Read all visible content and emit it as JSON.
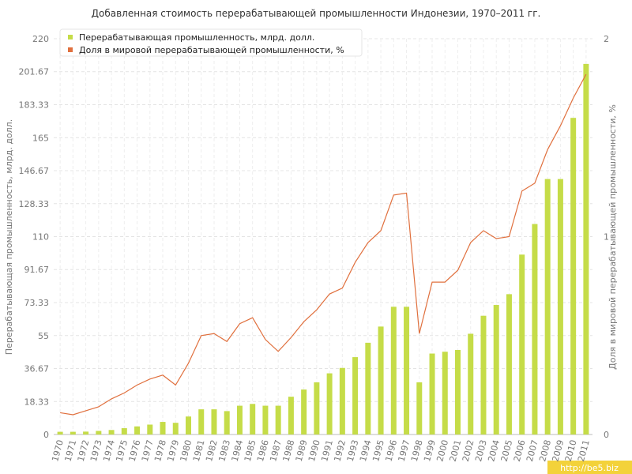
{
  "chart_data": {
    "type": "combo",
    "title": "Добавленная стоимость перерабатывающей промышленности Индонезии, 1970–2011 гг.",
    "ylabel": "Перерабатывающая промышленность, млрд. долл.",
    "y2label": "Доля в мировой перерабатывающей промышленности, %",
    "categories": [
      "1970",
      "1971",
      "1972",
      "1973",
      "1974",
      "1975",
      "1976",
      "1977",
      "1978",
      "1979",
      "1980",
      "1981",
      "1982",
      "1983",
      "1984",
      "1985",
      "1986",
      "1987",
      "1988",
      "1989",
      "1990",
      "1991",
      "1992",
      "1993",
      "1994",
      "1995",
      "1996",
      "1997",
      "1998",
      "1999",
      "2000",
      "2001",
      "2002",
      "2003",
      "2004",
      "2005",
      "2006",
      "2007",
      "2008",
      "2009",
      "2010",
      "2011"
    ],
    "series": [
      {
        "name": "Перерабатывающая промышленность, млрд. долл.",
        "type": "bar",
        "color": "#c5dc48",
        "values": [
          1.5,
          1.5,
          1.6,
          2,
          2.5,
          3.5,
          4.5,
          5.5,
          7,
          6.5,
          10,
          14,
          14,
          13,
          16,
          17,
          16,
          16,
          21,
          25,
          29,
          34,
          37,
          43,
          51,
          60,
          71,
          71,
          29,
          45,
          46,
          47,
          56,
          66,
          72,
          78,
          100,
          117,
          142,
          142,
          176,
          206
        ]
      },
      {
        "name": "Доля в мировой перерабатывающей промышленности, %",
        "type": "line",
        "axis": "y2",
        "color": "#e0703e",
        "values": [
          0.11,
          0.1,
          0.12,
          0.14,
          0.18,
          0.21,
          0.25,
          0.28,
          0.3,
          0.25,
          0.36,
          0.5,
          0.51,
          0.47,
          0.56,
          0.59,
          0.48,
          0.42,
          0.49,
          0.57,
          0.63,
          0.71,
          0.74,
          0.87,
          0.97,
          1.03,
          1.21,
          1.22,
          0.51,
          0.77,
          0.77,
          0.83,
          0.97,
          1.03,
          0.99,
          1.0,
          1.23,
          1.27,
          1.44,
          1.56,
          1.7,
          1.82
        ]
      }
    ],
    "ylim": [
      0,
      220
    ],
    "yticks": [
      0,
      18.33,
      36.67,
      55,
      73.33,
      91.67,
      110,
      128.33,
      146.67,
      165,
      183.33,
      201.67,
      220
    ],
    "y2lim": [
      0,
      2
    ],
    "y2ticks": [
      0,
      1,
      2
    ],
    "grid": true,
    "legend": "top-left"
  },
  "watermark": "http://be5.biz"
}
